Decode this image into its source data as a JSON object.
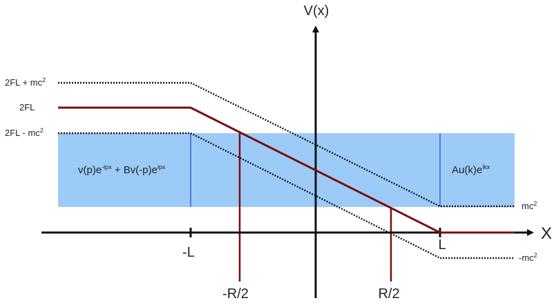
{
  "axes": {
    "y_label": "V(x)",
    "x_label": "X"
  },
  "ticks": {
    "minus_L": "-L",
    "L": "L",
    "minus_R_half": "-R/2",
    "R_half": "R/2"
  },
  "left_labels": {
    "top": {
      "base": "2FL + mc",
      "exp": "2"
    },
    "mid": "2FL",
    "bottom": {
      "base": "2FL - mc",
      "exp": "2"
    }
  },
  "right_labels": {
    "upper": {
      "base": "mc",
      "exp": "2"
    },
    "lower": {
      "base": "-mc",
      "exp": "2"
    }
  },
  "regions": {
    "left_wave": {
      "part1": "v(p)e",
      "exp1": "-ipx",
      "part2": " + Bv(-p)e",
      "exp2": "ipx"
    },
    "right_wave": {
      "part1": "Au(k)e",
      "exp1": "ikx"
    }
  },
  "colors": {
    "band": "#9dcbf8",
    "band_divider": "#3b55d6",
    "potential": "#7a0c0c",
    "axis": "#111111",
    "dotted": "#111111"
  }
}
